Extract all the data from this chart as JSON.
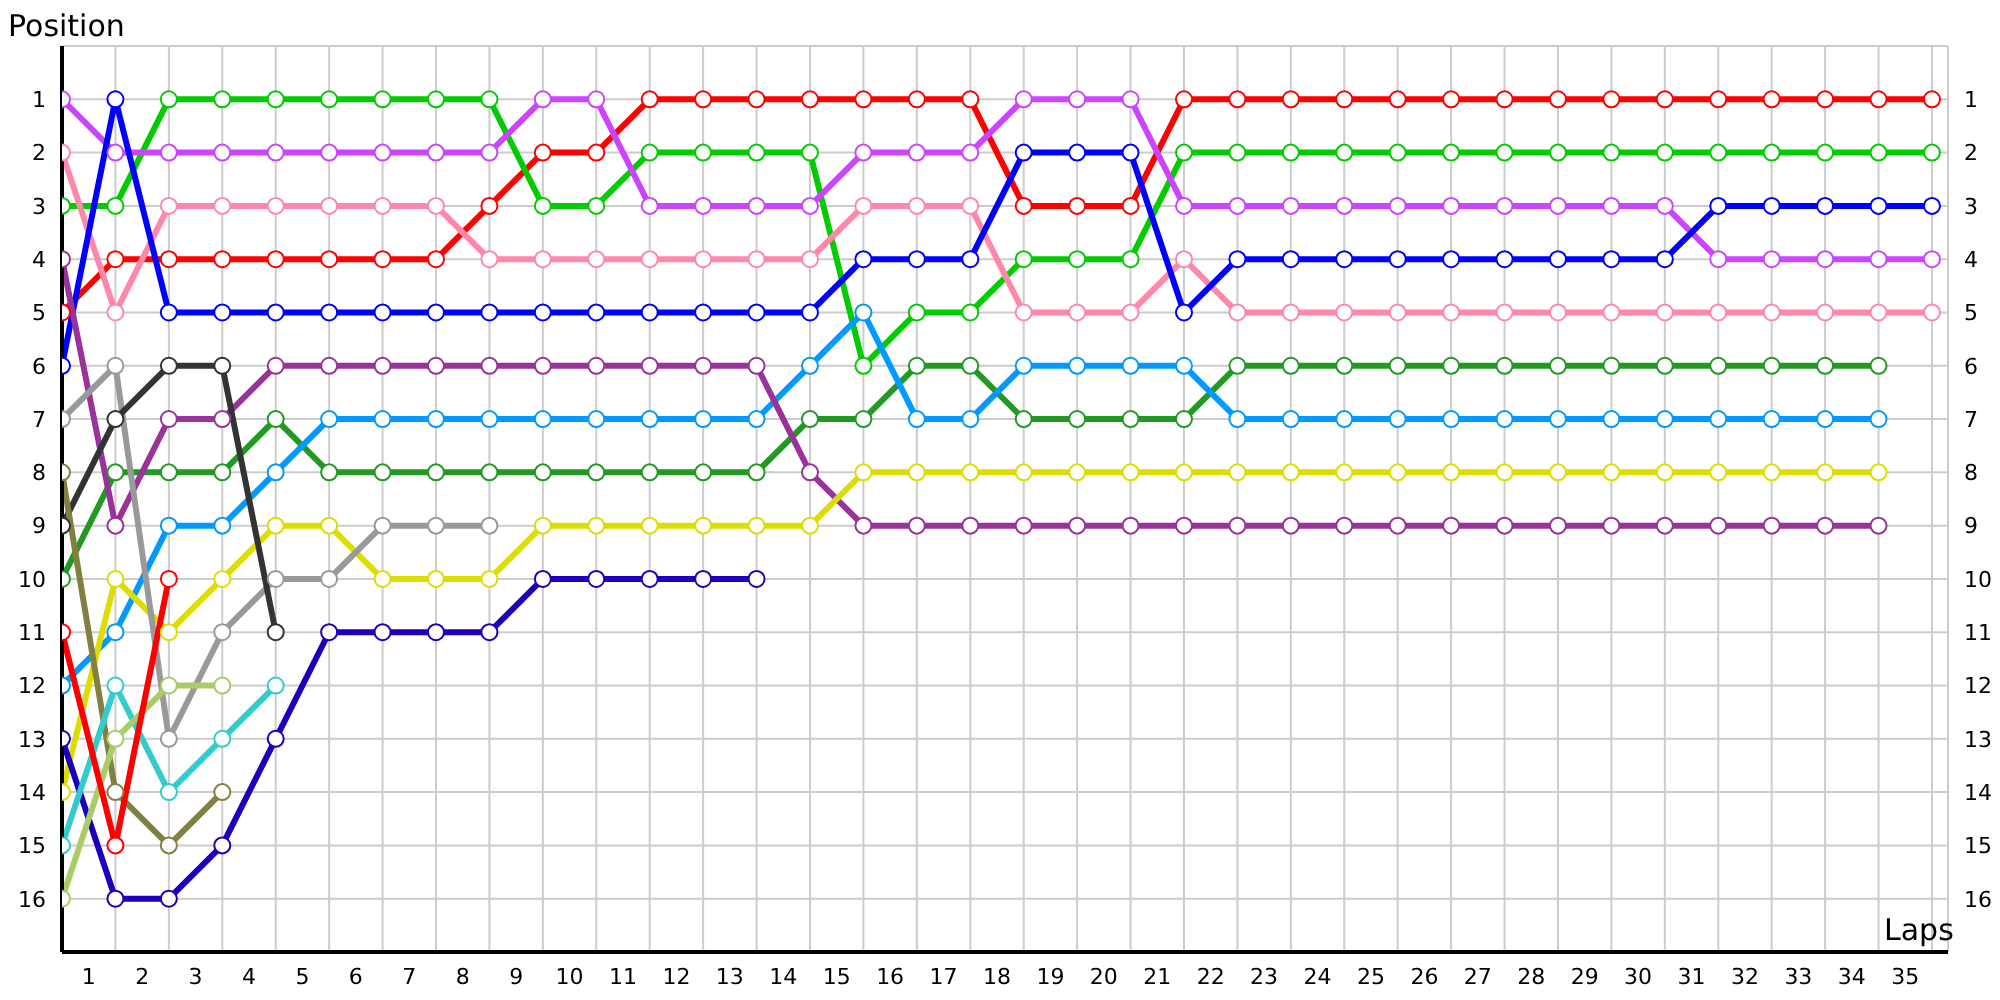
{
  "chart_data": {
    "type": "line",
    "xlabel": "Laps",
    "ylabel": "Position",
    "x": [
      0,
      1,
      2,
      3,
      4,
      5,
      6,
      7,
      8,
      9,
      10,
      11,
      12,
      13,
      14,
      15,
      16,
      17,
      18,
      19,
      20,
      21,
      22,
      23,
      24,
      25,
      26,
      27,
      28,
      29,
      30,
      31,
      32,
      33,
      34,
      35
    ],
    "xlim": [
      0,
      35.3
    ],
    "xticks": [
      {
        "value": 0,
        "label": null
      },
      {
        "value": 0.5,
        "label": "1"
      },
      {
        "value": 1,
        "label": null
      },
      {
        "value": 1.5,
        "label": "2"
      },
      {
        "value": 2,
        "label": null
      },
      {
        "value": 2.5,
        "label": "3"
      },
      {
        "value": 3,
        "label": null
      },
      {
        "value": 3.5,
        "label": "4"
      },
      {
        "value": 4,
        "label": null
      },
      {
        "value": 4.5,
        "label": "5"
      },
      {
        "value": 5,
        "label": null
      },
      {
        "value": 5.5,
        "label": "6"
      },
      {
        "value": 6,
        "label": null
      },
      {
        "value": 6.5,
        "label": "7"
      },
      {
        "value": 7,
        "label": null
      },
      {
        "value": 7.5,
        "label": "8"
      },
      {
        "value": 8,
        "label": null
      },
      {
        "value": 8.5,
        "label": "9"
      },
      {
        "value": 9,
        "label": null
      },
      {
        "value": 9.5,
        "label": "10"
      },
      {
        "value": 10,
        "label": null
      },
      {
        "value": 10.5,
        "label": "11"
      },
      {
        "value": 11,
        "label": null
      },
      {
        "value": 11.5,
        "label": "12"
      },
      {
        "value": 12,
        "label": null
      },
      {
        "value": 12.5,
        "label": "13"
      },
      {
        "value": 13,
        "label": null
      },
      {
        "value": 13.5,
        "label": "14"
      },
      {
        "value": 14,
        "label": null
      },
      {
        "value": 14.5,
        "label": "15"
      },
      {
        "value": 15,
        "label": null
      },
      {
        "value": 15.5,
        "label": "16"
      },
      {
        "value": 16,
        "label": null
      },
      {
        "value": 16.5,
        "label": "17"
      },
      {
        "value": 17,
        "label": null
      },
      {
        "value": 17.5,
        "label": "18"
      },
      {
        "value": 18,
        "label": null
      },
      {
        "value": 18.5,
        "label": "19"
      },
      {
        "value": 19,
        "label": null
      },
      {
        "value": 19.5,
        "label": "20"
      },
      {
        "value": 20,
        "label": null
      },
      {
        "value": 20.5,
        "label": "21"
      },
      {
        "value": 21,
        "label": null
      },
      {
        "value": 21.5,
        "label": "22"
      },
      {
        "value": 22,
        "label": null
      },
      {
        "value": 22.5,
        "label": "23"
      },
      {
        "value": 23,
        "label": null
      },
      {
        "value": 23.5,
        "label": "24"
      },
      {
        "value": 24,
        "label": null
      },
      {
        "value": 24.5,
        "label": "25"
      },
      {
        "value": 25,
        "label": null
      },
      {
        "value": 25.5,
        "label": "26"
      },
      {
        "value": 26,
        "label": null
      },
      {
        "value": 26.5,
        "label": "27"
      },
      {
        "value": 27,
        "label": null
      },
      {
        "value": 27.5,
        "label": "28"
      },
      {
        "value": 28,
        "label": null
      },
      {
        "value": 28.5,
        "label": "29"
      },
      {
        "value": 29,
        "label": null
      },
      {
        "value": 29.5,
        "label": "30"
      },
      {
        "value": 30,
        "label": null
      },
      {
        "value": 30.5,
        "label": "31"
      },
      {
        "value": 31,
        "label": null
      },
      {
        "value": 31.5,
        "label": "32"
      },
      {
        "value": 32,
        "label": null
      },
      {
        "value": 32.5,
        "label": "33"
      },
      {
        "value": 33,
        "label": null
      },
      {
        "value": 33.5,
        "label": "34"
      },
      {
        "value": 34,
        "label": null
      },
      {
        "value": 34.5,
        "label": "35"
      },
      {
        "value": 35,
        "label": null
      }
    ],
    "ylim": [
      17,
      0
    ],
    "yticks": [
      1,
      2,
      3,
      4,
      5,
      6,
      7,
      8,
      9,
      10,
      11,
      12,
      13,
      14,
      15,
      16
    ],
    "y2lim": [
      17,
      0
    ],
    "y2ticks": [
      1,
      2,
      3,
      4,
      5,
      6,
      7,
      8,
      9,
      10,
      11,
      12,
      13,
      14,
      15,
      16
    ],
    "grid": true,
    "marker": "circle",
    "line_style": "solid",
    "series": [
      {
        "color": "#ff0000",
        "values": [
          5,
          4,
          4,
          4,
          4,
          4,
          4,
          4,
          3,
          2,
          2,
          1,
          1,
          1,
          1,
          1,
          1,
          1,
          3,
          3,
          3,
          1,
          1,
          1,
          1,
          1,
          1,
          1,
          1,
          1,
          1,
          1,
          1,
          1,
          1,
          1
        ]
      },
      {
        "color": "#00cc00",
        "values": [
          3,
          3,
          1,
          1,
          1,
          1,
          1,
          1,
          1,
          3,
          3,
          2,
          2,
          2,
          2,
          6,
          5,
          5,
          4,
          4,
          4,
          2,
          2,
          2,
          2,
          2,
          2,
          2,
          2,
          2,
          2,
          2,
          2,
          2,
          2,
          2
        ]
      },
      {
        "color": "#cc44ff",
        "values": [
          1,
          2,
          2,
          2,
          2,
          2,
          2,
          2,
          2,
          1,
          1,
          3,
          3,
          3,
          3,
          2,
          2,
          2,
          1,
          1,
          1,
          3,
          3,
          3,
          3,
          3,
          3,
          3,
          3,
          3,
          3,
          4,
          4,
          4,
          4,
          4
        ]
      },
      {
        "color": "#ff88aa",
        "values": [
          2,
          5,
          3,
          3,
          3,
          3,
          3,
          3,
          4,
          4,
          4,
          4,
          4,
          4,
          4,
          3,
          3,
          3,
          5,
          5,
          5,
          4,
          5,
          5,
          5,
          5,
          5,
          5,
          5,
          5,
          5,
          5,
          5,
          5,
          5,
          5
        ]
      },
      {
        "color": "#0000ff",
        "values": [
          6,
          1,
          5,
          5,
          5,
          5,
          5,
          5,
          5,
          5,
          5,
          5,
          5,
          5,
          5,
          4,
          4,
          4,
          2,
          2,
          2,
          5,
          4,
          4,
          4,
          4,
          4,
          4,
          4,
          4,
          4,
          3,
          3,
          3,
          3,
          3
        ]
      },
      {
        "color": "#229922",
        "values": [
          10,
          8,
          8,
          8,
          7,
          8,
          8,
          8,
          8,
          8,
          8,
          8,
          8,
          8,
          7,
          7,
          6,
          6,
          7,
          7,
          7,
          7,
          6,
          6,
          6,
          6,
          6,
          6,
          6,
          6,
          6,
          6,
          6,
          6,
          6,
          null
        ]
      },
      {
        "color": "#0099ff",
        "values": [
          12,
          11,
          9,
          9,
          8,
          7,
          7,
          7,
          7,
          7,
          7,
          7,
          7,
          7,
          6,
          5,
          7,
          7,
          6,
          6,
          6,
          6,
          7,
          7,
          7,
          7,
          7,
          7,
          7,
          7,
          7,
          7,
          7,
          7,
          7,
          null
        ]
      },
      {
        "color": "#993399",
        "values": [
          4,
          9,
          7,
          7,
          6,
          6,
          6,
          6,
          6,
          6,
          6,
          6,
          6,
          6,
          8,
          9,
          9,
          9,
          9,
          9,
          9,
          9,
          9,
          9,
          9,
          9,
          9,
          9,
          9,
          9,
          9,
          9,
          9,
          9,
          9,
          null
        ]
      },
      {
        "color": "#dddd00",
        "values": [
          14,
          10,
          11,
          10,
          9,
          9,
          10,
          10,
          10,
          9,
          9,
          9,
          9,
          9,
          9,
          8,
          8,
          8,
          8,
          8,
          8,
          8,
          8,
          8,
          8,
          8,
          8,
          8,
          8,
          8,
          8,
          8,
          8,
          8,
          8,
          null
        ]
      },
      {
        "color": "#999999",
        "values": [
          7,
          6,
          13,
          11,
          10,
          10,
          9,
          9,
          9,
          null,
          null,
          null,
          null,
          null,
          null,
          null,
          null,
          null,
          null,
          null,
          null,
          null,
          null,
          null,
          null,
          null,
          null,
          null,
          null,
          null,
          null,
          null,
          null,
          null,
          null,
          null
        ]
      },
      {
        "color": "#1a00bb",
        "values": [
          13,
          16,
          16,
          15,
          13,
          11,
          11,
          11,
          11,
          10,
          10,
          10,
          10,
          10,
          null,
          null,
          null,
          null,
          null,
          null,
          null,
          null,
          null,
          null,
          null,
          null,
          null,
          null,
          null,
          null,
          null,
          null,
          null,
          null,
          null,
          null
        ]
      },
      {
        "color": "#333333",
        "values": [
          9,
          7,
          6,
          6,
          11,
          null,
          null,
          null,
          null,
          null,
          null,
          null,
          null,
          null,
          null,
          null,
          null,
          null,
          null,
          null,
          null,
          null,
          null,
          null,
          null,
          null,
          null,
          null,
          null,
          null,
          null,
          null,
          null,
          null,
          null,
          null
        ]
      },
      {
        "color": "#808040",
        "values": [
          8,
          14,
          15,
          14,
          null,
          null,
          null,
          null,
          null,
          null,
          null,
          null,
          null,
          null,
          null,
          null,
          null,
          null,
          null,
          null,
          null,
          null,
          null,
          null,
          null,
          null,
          null,
          null,
          null,
          null,
          null,
          null,
          null,
          null,
          null,
          null
        ]
      },
      {
        "color": "#33cccc",
        "values": [
          15,
          12,
          14,
          13,
          12,
          null,
          null,
          null,
          null,
          null,
          null,
          null,
          null,
          null,
          null,
          null,
          null,
          null,
          null,
          null,
          null,
          null,
          null,
          null,
          null,
          null,
          null,
          null,
          null,
          null,
          null,
          null,
          null,
          null,
          null,
          null
        ]
      },
      {
        "color": "#aacc66",
        "values": [
          16,
          13,
          12,
          12,
          null,
          null,
          null,
          null,
          null,
          null,
          null,
          null,
          null,
          null,
          null,
          null,
          null,
          null,
          null,
          null,
          null,
          null,
          null,
          null,
          null,
          null,
          null,
          null,
          null,
          null,
          null,
          null,
          null,
          null,
          null,
          null
        ]
      },
      {
        "color": "#ff0000",
        "values": [
          11,
          15,
          10,
          null,
          null,
          null,
          null,
          null,
          null,
          null,
          null,
          null,
          null,
          null,
          null,
          null,
          null,
          null,
          null,
          null,
          null,
          null,
          null,
          null,
          null,
          null,
          null,
          null,
          null,
          null,
          null,
          null,
          null,
          null,
          null,
          null
        ]
      }
    ]
  }
}
